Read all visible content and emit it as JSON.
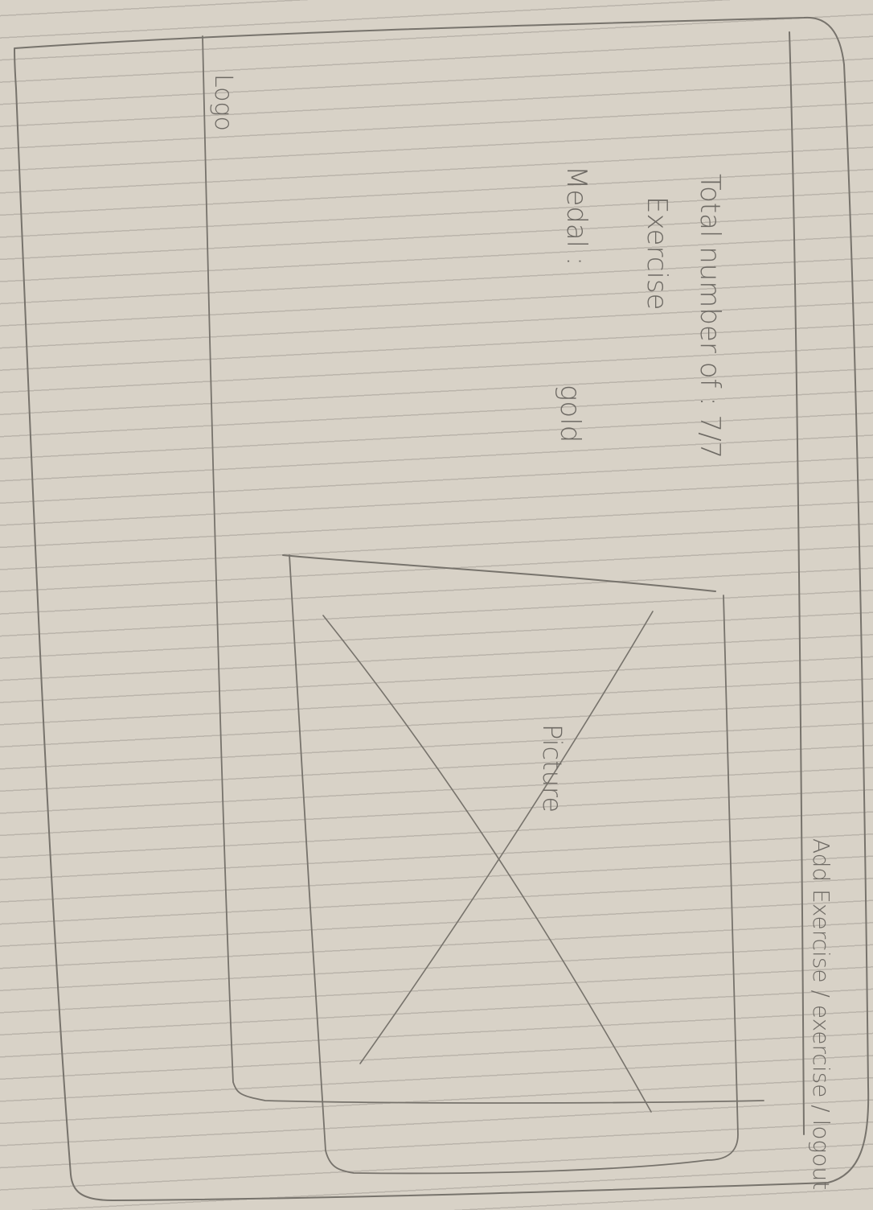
{
  "header": {
    "logo_text": "Logo",
    "nav_text": "Add Exercise / exercise / logout"
  },
  "stats": {
    "total_label": "Total number of : 7/7",
    "total_label_cont": "Exercise",
    "medal_label": "Medal :",
    "medal_value": "gold"
  },
  "picture": {
    "label": "Picture"
  }
}
